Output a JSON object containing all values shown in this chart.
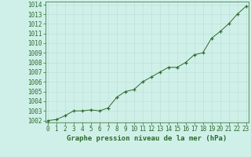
{
  "x": [
    0,
    1,
    2,
    3,
    4,
    5,
    6,
    7,
    8,
    9,
    10,
    11,
    12,
    13,
    14,
    15,
    16,
    17,
    18,
    19,
    20,
    21,
    22,
    23
  ],
  "y": [
    1002.0,
    1002.1,
    1002.5,
    1003.0,
    1003.0,
    1003.1,
    1003.0,
    1003.3,
    1004.4,
    1005.0,
    1005.2,
    1006.0,
    1006.5,
    1007.0,
    1007.5,
    1007.5,
    1008.0,
    1008.8,
    1009.0,
    1010.5,
    1011.2,
    1012.0,
    1013.0,
    1013.8
  ],
  "ylim_min": 1001.8,
  "ylim_max": 1014.3,
  "xlim_min": -0.3,
  "xlim_max": 23.3,
  "yticks": [
    1002,
    1003,
    1004,
    1005,
    1006,
    1007,
    1008,
    1009,
    1010,
    1011,
    1012,
    1013,
    1014
  ],
  "xticks": [
    0,
    1,
    2,
    3,
    4,
    5,
    6,
    7,
    8,
    9,
    10,
    11,
    12,
    13,
    14,
    15,
    16,
    17,
    18,
    19,
    20,
    21,
    22,
    23
  ],
  "line_color": "#2d6a2d",
  "marker_color": "#2d6a2d",
  "bg_color": "#cff0e8",
  "grid_color": "#aad4cc",
  "xlabel": "Graphe pression niveau de la mer (hPa)",
  "xlabel_fontsize": 6.5,
  "tick_fontsize": 5.5,
  "fig_bg": "#cff0e8",
  "grid_major_color": "#b8ddd6",
  "grid_minor_color": "#d8ede8"
}
